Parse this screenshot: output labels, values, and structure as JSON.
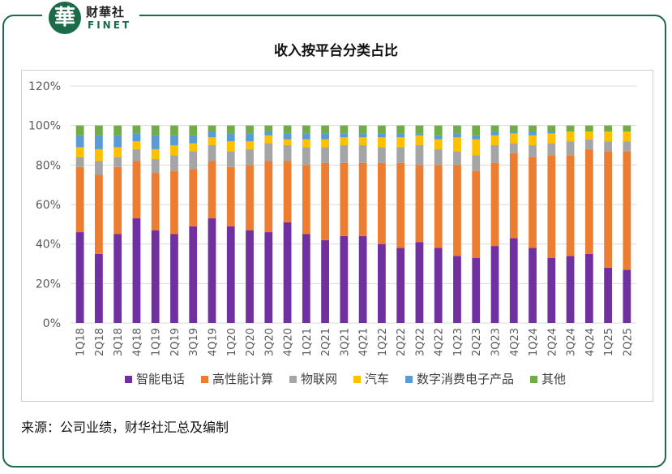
{
  "brand": {
    "seal_char": "華",
    "name_cn": "财華社",
    "name_en": "FINET"
  },
  "title": "收入按平台分类占比",
  "source": "来源：公司业绩，财华社汇总及编制",
  "colors": {
    "smartphone": "#7030a0",
    "hpc": "#ed7d31",
    "iot": "#a5a5a5",
    "auto": "#ffc000",
    "dce": "#5b9bd5",
    "others": "#70ad47",
    "frame": "#1b6b4a"
  },
  "chart_data": {
    "type": "bar",
    "stacked": "percent",
    "categories": [
      "1Q18",
      "2Q18",
      "3Q18",
      "4Q18",
      "1Q19",
      "2Q19",
      "3Q19",
      "4Q19",
      "1Q20",
      "2Q20",
      "3Q20",
      "4Q20",
      "1Q21",
      "2Q21",
      "3Q21",
      "4Q21",
      "1Q22",
      "2Q22",
      "3Q22",
      "4Q22",
      "1Q23",
      "2Q23",
      "3Q23",
      "4Q23",
      "1Q24",
      "2Q24",
      "3Q24",
      "4Q24",
      "1Q25",
      "2Q25"
    ],
    "series": [
      {
        "name": "智能电话",
        "color_key": "smartphone",
        "values": [
          46,
          35,
          45,
          53,
          47,
          45,
          49,
          53,
          49,
          47,
          46,
          51,
          45,
          42,
          44,
          44,
          40,
          38,
          41,
          38,
          34,
          33,
          39,
          43,
          38,
          33,
          34,
          35,
          28,
          27
        ]
      },
      {
        "name": "高性能计算",
        "color_key": "hpc",
        "values": [
          33,
          40,
          34,
          29,
          29,
          32,
          29,
          29,
          30,
          33,
          36,
          31,
          35,
          39,
          37,
          37,
          41,
          43,
          39,
          42,
          46,
          44,
          42,
          43,
          46,
          52,
          51,
          53,
          59,
          60
        ]
      },
      {
        "name": "物联网",
        "color_key": "iot",
        "values": [
          5,
          7,
          5,
          6,
          7,
          8,
          9,
          8,
          8,
          8,
          9,
          8,
          9,
          8,
          9,
          9,
          8,
          8,
          10,
          8,
          7,
          8,
          9,
          5,
          6,
          6,
          7,
          5,
          5,
          5
        ]
      },
      {
        "name": "汽车",
        "color_key": "auto",
        "values": [
          5,
          6,
          5,
          4,
          5,
          5,
          4,
          4,
          5,
          4,
          4,
          3,
          4,
          4,
          4,
          4,
          5,
          5,
          5,
          5,
          7,
          8,
          5,
          5,
          5,
          5,
          5,
          4,
          5,
          5
        ]
      },
      {
        "name": "数字消费电子产品",
        "color_key": "dce",
        "values": [
          6,
          7,
          6,
          4,
          7,
          5,
          4,
          3,
          4,
          4,
          2,
          3,
          3,
          3,
          2,
          2,
          2,
          2,
          1,
          2,
          2,
          2,
          2,
          1,
          2,
          1,
          0,
          0,
          0,
          0
        ]
      },
      {
        "name": "其他",
        "color_key": "others",
        "values": [
          5,
          5,
          5,
          4,
          5,
          5,
          5,
          3,
          4,
          4,
          3,
          4,
          4,
          4,
          4,
          4,
          4,
          4,
          4,
          5,
          4,
          5,
          3,
          3,
          3,
          3,
          3,
          3,
          3,
          3
        ]
      }
    ],
    "y_ticks": [
      "0%",
      "20%",
      "40%",
      "60%",
      "80%",
      "100%",
      "120%"
    ],
    "ylim": [
      0,
      120
    ],
    "grid": true,
    "legend": "bottom",
    "x_tick_rotation": "vertical"
  }
}
